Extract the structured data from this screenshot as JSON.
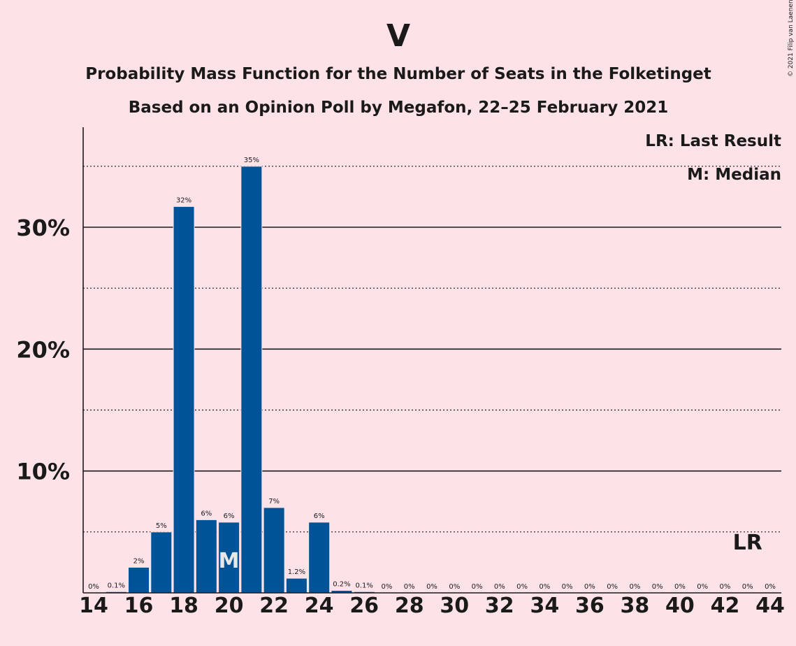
{
  "colors": {
    "background": "#fde3e8",
    "bar": "#005396",
    "text": "#1a1a1a",
    "median_marker": "#e7e7e7"
  },
  "chart_data": {
    "type": "bar",
    "title": "V",
    "subtitle": "Probability Mass Function for the Number of Seats in the Folketinget",
    "subtitle2": "Based on an Opinion Poll by Megafon, 22–25 February 2021",
    "copyright": "© 2021 Filip van Laenen",
    "legend": {
      "last_result": "LR: Last Result",
      "median": "M: Median",
      "placement": "top-right"
    },
    "xlim": [
      14,
      44
    ],
    "ylim": [
      0,
      38
    ],
    "x_ticks": [
      14,
      16,
      18,
      20,
      22,
      24,
      26,
      28,
      30,
      32,
      34,
      36,
      38,
      40,
      42,
      44
    ],
    "y_ticks": [
      {
        "value": 10,
        "label": "10%"
      },
      {
        "value": 20,
        "label": "20%"
      },
      {
        "value": 30,
        "label": "30%"
      }
    ],
    "dotted_gridlines": [
      5,
      15,
      25,
      35
    ],
    "x": [
      14,
      15,
      16,
      17,
      18,
      19,
      20,
      21,
      22,
      23,
      24,
      25,
      26,
      27,
      28,
      29,
      30,
      31,
      32,
      33,
      34,
      35,
      36,
      37,
      38,
      39,
      40,
      41,
      42,
      43,
      44
    ],
    "values": [
      0,
      0.1,
      2.1,
      5.0,
      31.7,
      6.0,
      5.8,
      35.0,
      7.0,
      1.2,
      5.8,
      0.2,
      0.1,
      0,
      0,
      0,
      0,
      0,
      0,
      0,
      0,
      0,
      0,
      0,
      0,
      0,
      0,
      0,
      0,
      0,
      0
    ],
    "value_labels": [
      "0%",
      "0.1%",
      "2%",
      "5%",
      "32%",
      "6%",
      "6%",
      "35%",
      "7%",
      "1.2%",
      "6%",
      "0.2%",
      "0.1%",
      "0%",
      "0%",
      "0%",
      "0%",
      "0%",
      "0%",
      "0%",
      "0%",
      "0%",
      "0%",
      "0%",
      "0%",
      "0%",
      "0%",
      "0%",
      "0%",
      "0%",
      "0%"
    ],
    "median": {
      "x": 20,
      "label": "M"
    },
    "last_result": {
      "x": 43,
      "label": "LR"
    }
  }
}
